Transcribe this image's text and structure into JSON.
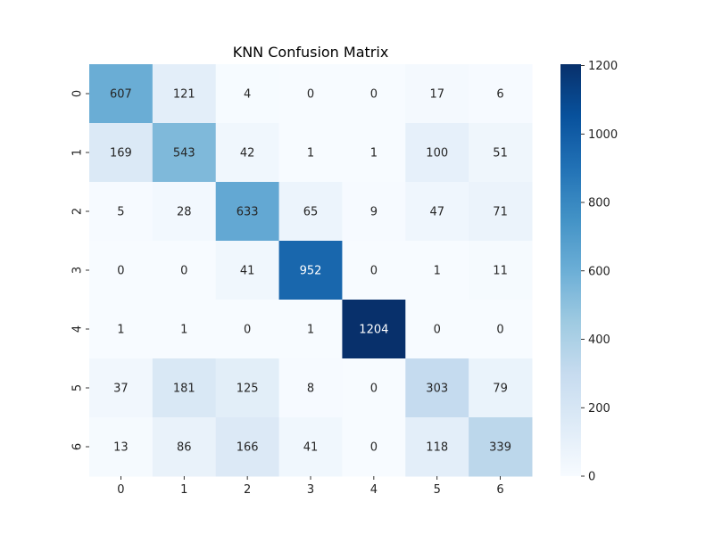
{
  "chart_data": {
    "type": "heatmap",
    "title": "KNN Confusion Matrix",
    "xlabel": "",
    "ylabel": "",
    "x_categories": [
      "0",
      "1",
      "2",
      "3",
      "4",
      "5",
      "6"
    ],
    "y_categories": [
      "0",
      "1",
      "2",
      "3",
      "4",
      "5",
      "6"
    ],
    "values": [
      [
        607,
        121,
        4,
        0,
        0,
        17,
        6
      ],
      [
        169,
        543,
        42,
        1,
        1,
        100,
        51
      ],
      [
        5,
        28,
        633,
        65,
        9,
        47,
        71
      ],
      [
        0,
        0,
        41,
        952,
        0,
        1,
        11
      ],
      [
        1,
        1,
        0,
        1,
        1204,
        0,
        0
      ],
      [
        37,
        181,
        125,
        8,
        0,
        303,
        79
      ],
      [
        13,
        86,
        166,
        41,
        0,
        118,
        339
      ]
    ],
    "colorbar": {
      "range": [
        0,
        1204
      ],
      "ticks": [
        0,
        200,
        400,
        600,
        800,
        1000,
        1200
      ],
      "colormap": "Blues"
    },
    "annotations": true,
    "grid": false
  }
}
